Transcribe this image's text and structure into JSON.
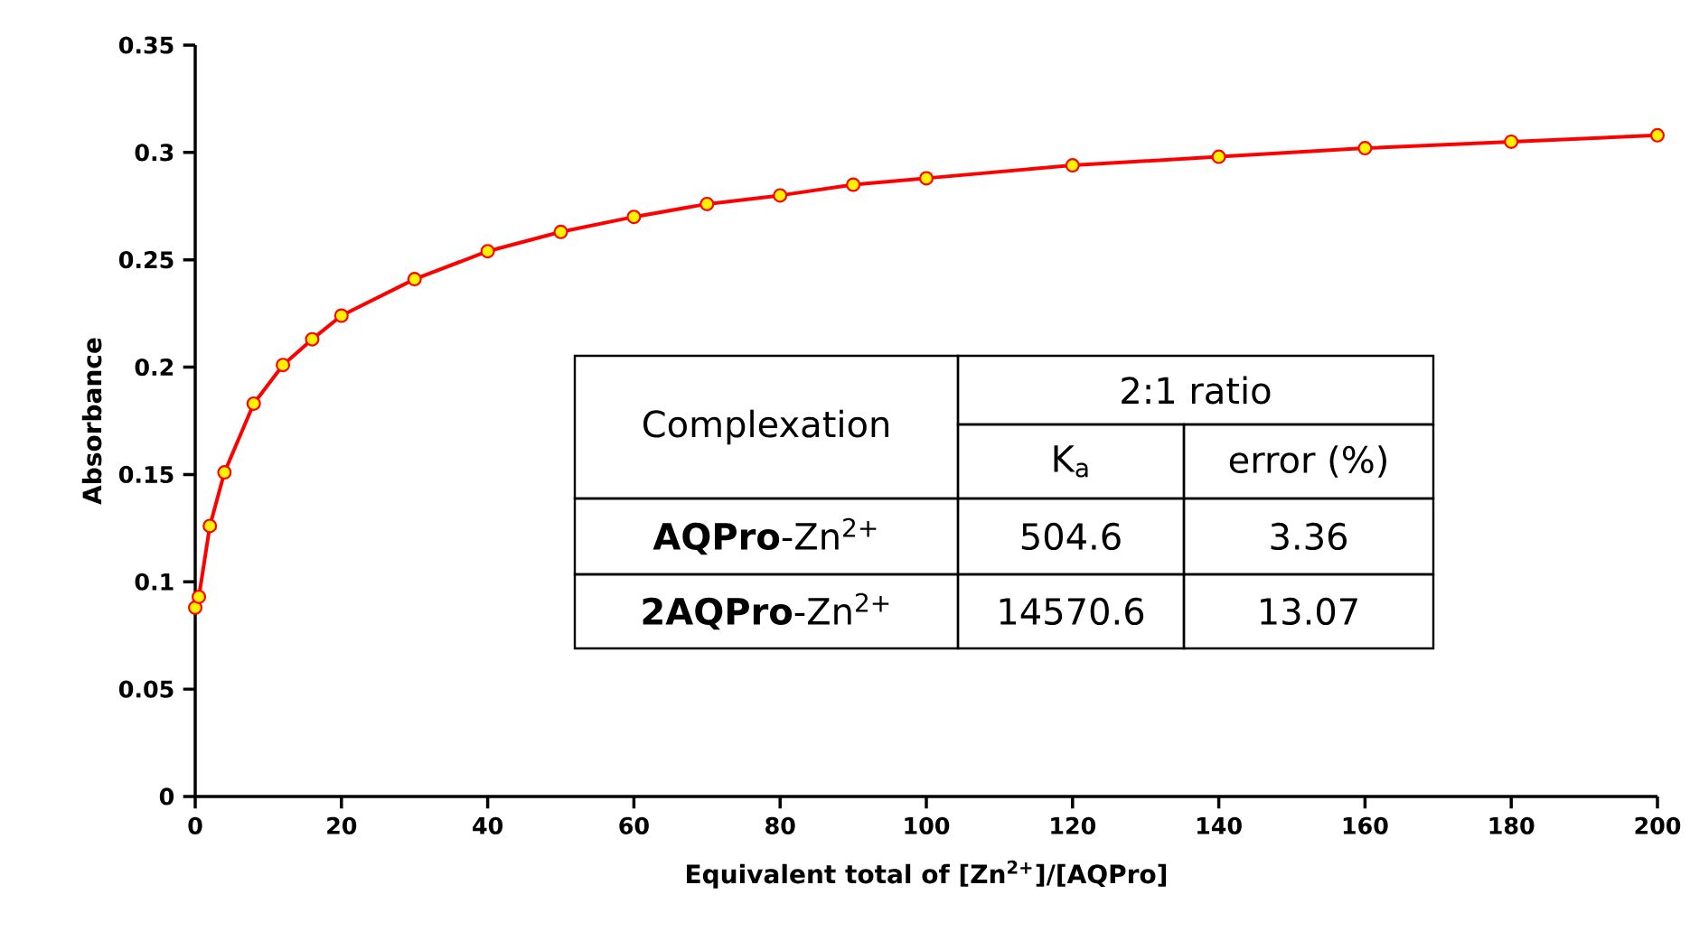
{
  "chart_data": {
    "type": "line",
    "xlabel": "Equivalent total of [Zn$^{2+}$]/[AQPro]",
    "ylabel": "Absorbance",
    "series": [
      {
        "color": "#ff0000",
        "x": [
          0,
          0.5,
          2,
          4,
          8,
          12,
          16,
          20,
          30,
          40,
          50,
          60,
          70,
          80,
          90,
          100,
          120,
          140,
          160,
          180,
          200
        ],
        "values": [
          0.088,
          0.093,
          0.126,
          0.151,
          0.183,
          0.201,
          0.213,
          0.224,
          0.241,
          0.254,
          0.263,
          0.27,
          0.276,
          0.28,
          0.285,
          0.288,
          0.294,
          0.298,
          0.302,
          0.305,
          0.308
        ]
      }
    ],
    "xlim": [
      0,
      200
    ],
    "ylim": [
      0,
      0.35
    ],
    "xticks": [
      0,
      20,
      40,
      60,
      80,
      100,
      120,
      140,
      160,
      180,
      200
    ],
    "yticks": [
      0,
      0.05,
      0.1,
      0.15,
      0.2,
      0.25,
      0.3,
      0.35
    ],
    "marker": "circle",
    "line_style": "solid",
    "grid": false,
    "annotations": [
      "Complexation",
      "2:1 ratio",
      "K$_{a}$",
      "error (%)",
      "**AQPro**-Zn$^{2+}$",
      "504.6",
      "3.36",
      "**2AQPro**-Zn$^{2+}$",
      "14570.6",
      "13.07"
    ]
  }
}
